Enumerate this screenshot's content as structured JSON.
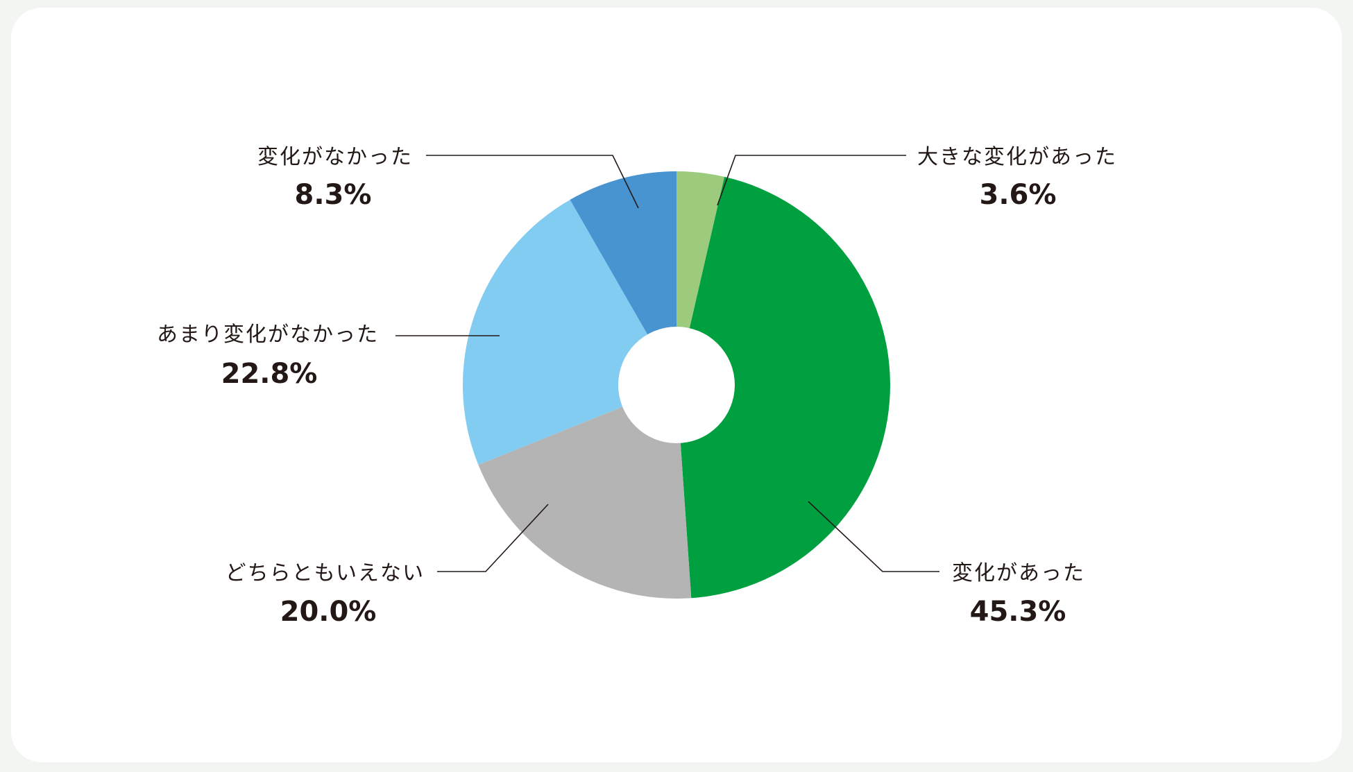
{
  "chart_data": {
    "type": "pie",
    "title": "",
    "donut": true,
    "slices": [
      {
        "label": "大きな変化があった",
        "value": 3.6,
        "display": "3.6%",
        "color": "#9dcb7e"
      },
      {
        "label": "変化があった",
        "value": 45.3,
        "display": "45.3%",
        "color": "#00a040"
      },
      {
        "label": "どちらともいえない",
        "value": 20.0,
        "display": "20.0%",
        "color": "#b4b4b4"
      },
      {
        "label": "あまり変化がなかった",
        "value": 22.8,
        "display": "22.8%",
        "color": "#82ccf2"
      },
      {
        "label": "変化がなかった",
        "value": 8.3,
        "display": "8.3%",
        "color": "#4894d0"
      }
    ],
    "start": "12 o'clock",
    "direction": "clockwise",
    "legend": "none (direct labels with leader lines)"
  }
}
